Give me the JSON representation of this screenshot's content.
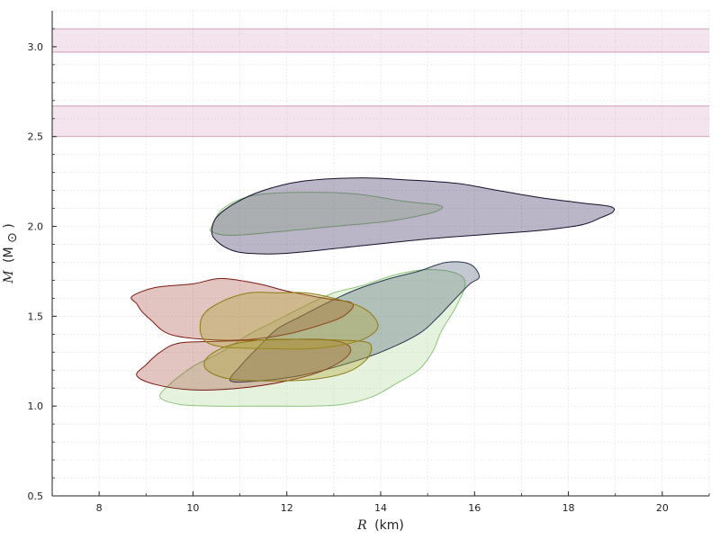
{
  "chart_data": {
    "type": "area",
    "title": "",
    "xlabel": {
      "symbol": "R",
      "unit": "(km)"
    },
    "ylabel": {
      "symbol": "M",
      "unit": "(M",
      "unit_sub": "⊙",
      "unit_close": ")"
    },
    "xlim": [
      7,
      21
    ],
    "ylim": [
      0.5,
      3.2
    ],
    "xticks": [
      8,
      10,
      12,
      14,
      16,
      18,
      20
    ],
    "yticks": [
      0.5,
      1.0,
      1.5,
      2.0,
      2.5,
      3.0
    ],
    "xtick_labels": [
      "8",
      "10",
      "12",
      "14",
      "16",
      "18",
      "20"
    ],
    "ytick_labels": [
      "0.5",
      "1.0",
      "1.5",
      "2.0",
      "2.5",
      "3.0"
    ],
    "grid": true,
    "legend": "none",
    "bands": [
      {
        "y": [
          2.97,
          3.1
        ],
        "fill": "#dcb3cf",
        "stroke": "#b04a78"
      },
      {
        "y": [
          2.5,
          2.67
        ],
        "fill": "#dcb3cf",
        "stroke": "#b04a78"
      }
    ],
    "regions": [
      {
        "fill": "#b5dca0",
        "stroke": "#8cc47a",
        "fill_opacity": 0.35,
        "points": [
          [
            10.4,
            2.0
          ],
          [
            10.6,
            2.09
          ],
          [
            11.0,
            2.15
          ],
          [
            11.5,
            2.18
          ],
          [
            12.5,
            2.19
          ],
          [
            13.5,
            2.18
          ],
          [
            14.5,
            2.14
          ],
          [
            15.2,
            2.12
          ],
          [
            15.3,
            2.1
          ],
          [
            15.0,
            2.07
          ],
          [
            14.2,
            2.03
          ],
          [
            13.0,
            2.0
          ],
          [
            11.8,
            1.97
          ],
          [
            10.8,
            1.95
          ],
          [
            10.4,
            1.97
          ]
        ]
      },
      {
        "fill": "#3b2d5e",
        "stroke": "#15102e",
        "fill_opacity": 0.35,
        "points": [
          [
            10.4,
            1.97
          ],
          [
            10.5,
            2.05
          ],
          [
            10.9,
            2.13
          ],
          [
            11.5,
            2.2
          ],
          [
            12.3,
            2.25
          ],
          [
            13.5,
            2.27
          ],
          [
            14.5,
            2.26
          ],
          [
            15.6,
            2.24
          ],
          [
            16.5,
            2.2
          ],
          [
            17.4,
            2.16
          ],
          [
            18.3,
            2.13
          ],
          [
            18.9,
            2.11
          ],
          [
            18.95,
            2.08
          ],
          [
            18.7,
            2.05
          ],
          [
            18.3,
            2.01
          ],
          [
            17.5,
            1.98
          ],
          [
            16.5,
            1.96
          ],
          [
            15.0,
            1.93
          ],
          [
            13.5,
            1.89
          ],
          [
            12.0,
            1.85
          ],
          [
            11.2,
            1.85
          ],
          [
            10.8,
            1.87
          ],
          [
            10.5,
            1.92
          ]
        ]
      },
      {
        "fill": "#b5dca0",
        "stroke": "#8cc47a",
        "fill_opacity": 0.35,
        "points": [
          [
            9.3,
            1.05
          ],
          [
            9.7,
            1.01
          ],
          [
            10.5,
            1.0
          ],
          [
            11.5,
            1.0
          ],
          [
            12.5,
            1.0
          ],
          [
            13.2,
            1.01
          ],
          [
            13.8,
            1.05
          ],
          [
            14.3,
            1.12
          ],
          [
            14.8,
            1.2
          ],
          [
            15.1,
            1.3
          ],
          [
            15.3,
            1.42
          ],
          [
            15.6,
            1.55
          ],
          [
            15.8,
            1.68
          ],
          [
            15.6,
            1.74
          ],
          [
            15.0,
            1.76
          ],
          [
            14.3,
            1.73
          ],
          [
            13.6,
            1.67
          ],
          [
            13.0,
            1.63
          ],
          [
            12.4,
            1.56
          ],
          [
            11.8,
            1.48
          ],
          [
            11.2,
            1.4
          ],
          [
            10.6,
            1.3
          ],
          [
            10.0,
            1.22
          ],
          [
            9.5,
            1.12
          ]
        ]
      },
      {
        "fill": "#3b4d66",
        "stroke": "#2b3850",
        "fill_opacity": 0.3,
        "points": [
          [
            10.8,
            1.14
          ],
          [
            11.4,
            1.14
          ],
          [
            12.3,
            1.17
          ],
          [
            13.2,
            1.23
          ],
          [
            14.0,
            1.3
          ],
          [
            14.8,
            1.4
          ],
          [
            15.2,
            1.49
          ],
          [
            15.6,
            1.6
          ],
          [
            15.9,
            1.68
          ],
          [
            16.1,
            1.72
          ],
          [
            15.9,
            1.79
          ],
          [
            15.4,
            1.8
          ],
          [
            14.8,
            1.75
          ],
          [
            14.2,
            1.71
          ],
          [
            13.5,
            1.65
          ],
          [
            12.9,
            1.58
          ],
          [
            12.3,
            1.5
          ],
          [
            11.8,
            1.43
          ],
          [
            11.4,
            1.33
          ],
          [
            11.0,
            1.22
          ]
        ]
      },
      {
        "fill": "#a04030",
        "stroke": "#7a1a12",
        "fill_opacity": 0.3,
        "points": [
          [
            8.7,
            1.61
          ],
          [
            9.2,
            1.66
          ],
          [
            10.0,
            1.68
          ],
          [
            10.6,
            1.71
          ],
          [
            11.4,
            1.68
          ],
          [
            12.0,
            1.64
          ],
          [
            12.8,
            1.6
          ],
          [
            13.4,
            1.57
          ],
          [
            13.2,
            1.5
          ],
          [
            12.7,
            1.45
          ],
          [
            12.0,
            1.4
          ],
          [
            11.2,
            1.37
          ],
          [
            10.3,
            1.37
          ],
          [
            9.5,
            1.4
          ],
          [
            9.1,
            1.48
          ],
          [
            8.9,
            1.53
          ],
          [
            8.8,
            1.57
          ]
        ]
      },
      {
        "fill": "#a04030",
        "stroke": "#7a1a12",
        "fill_opacity": 0.3,
        "points": [
          [
            8.8,
            1.17
          ],
          [
            9.2,
            1.12
          ],
          [
            10.0,
            1.09
          ],
          [
            11.0,
            1.1
          ],
          [
            12.0,
            1.14
          ],
          [
            12.8,
            1.2
          ],
          [
            13.3,
            1.28
          ],
          [
            13.3,
            1.34
          ],
          [
            12.8,
            1.37
          ],
          [
            11.8,
            1.37
          ],
          [
            10.5,
            1.36
          ],
          [
            9.7,
            1.35
          ],
          [
            9.3,
            1.3
          ],
          [
            9.0,
            1.23
          ]
        ]
      },
      {
        "fill": "#b0a030",
        "stroke": "#8c7b12",
        "fill_opacity": 0.35,
        "points": [
          [
            10.2,
            1.5
          ],
          [
            10.6,
            1.58
          ],
          [
            11.2,
            1.63
          ],
          [
            11.8,
            1.63
          ],
          [
            12.4,
            1.63
          ],
          [
            13.0,
            1.6
          ],
          [
            13.6,
            1.55
          ],
          [
            13.9,
            1.48
          ],
          [
            13.9,
            1.42
          ],
          [
            13.5,
            1.36
          ],
          [
            12.6,
            1.32
          ],
          [
            11.6,
            1.32
          ],
          [
            10.6,
            1.33
          ],
          [
            10.2,
            1.38
          ]
        ]
      },
      {
        "fill": "#b0a030",
        "stroke": "#8c7b12",
        "fill_opacity": 0.35,
        "points": [
          [
            10.3,
            1.2
          ],
          [
            10.8,
            1.15
          ],
          [
            11.7,
            1.14
          ],
          [
            12.6,
            1.15
          ],
          [
            13.3,
            1.19
          ],
          [
            13.7,
            1.26
          ],
          [
            13.8,
            1.33
          ],
          [
            13.6,
            1.36
          ],
          [
            12.6,
            1.37
          ],
          [
            11.6,
            1.37
          ],
          [
            10.8,
            1.34
          ],
          [
            10.3,
            1.27
          ]
        ]
      }
    ]
  }
}
